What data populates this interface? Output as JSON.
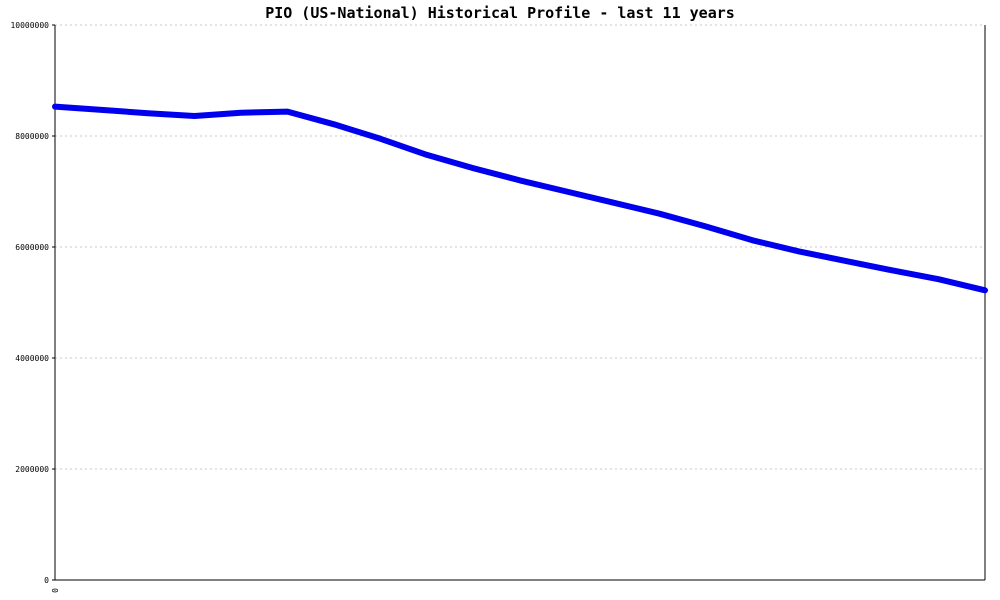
{
  "chart_data": {
    "type": "line",
    "title": "PIO (US-National) Historical Profile - last 11 years",
    "xlabel": "",
    "ylabel": "",
    "ylim": [
      0,
      10000000
    ],
    "yticks": [
      0,
      2000000,
      4000000,
      6000000,
      8000000,
      10000000
    ],
    "ytick_labels": [
      "0",
      "2000000",
      "4000000",
      "6000000",
      "8000000",
      "10000000"
    ],
    "xtick_labels": [
      "0"
    ],
    "grid": true,
    "series": [
      {
        "color": "#0000ee",
        "x": [
          0,
          0.5,
          1,
          1.5,
          2,
          2.5,
          3,
          3.5,
          4,
          4.5,
          5,
          5.5,
          6,
          6.5,
          7,
          7.5,
          8,
          8.5,
          9,
          9.5,
          10
        ],
        "values": [
          8530000,
          8470000,
          8410000,
          8360000,
          8420000,
          8440000,
          8210000,
          7950000,
          7660000,
          7420000,
          7200000,
          7000000,
          6800000,
          6600000,
          6370000,
          6120000,
          5920000,
          5750000,
          5580000,
          5420000,
          5220000
        ]
      }
    ]
  }
}
